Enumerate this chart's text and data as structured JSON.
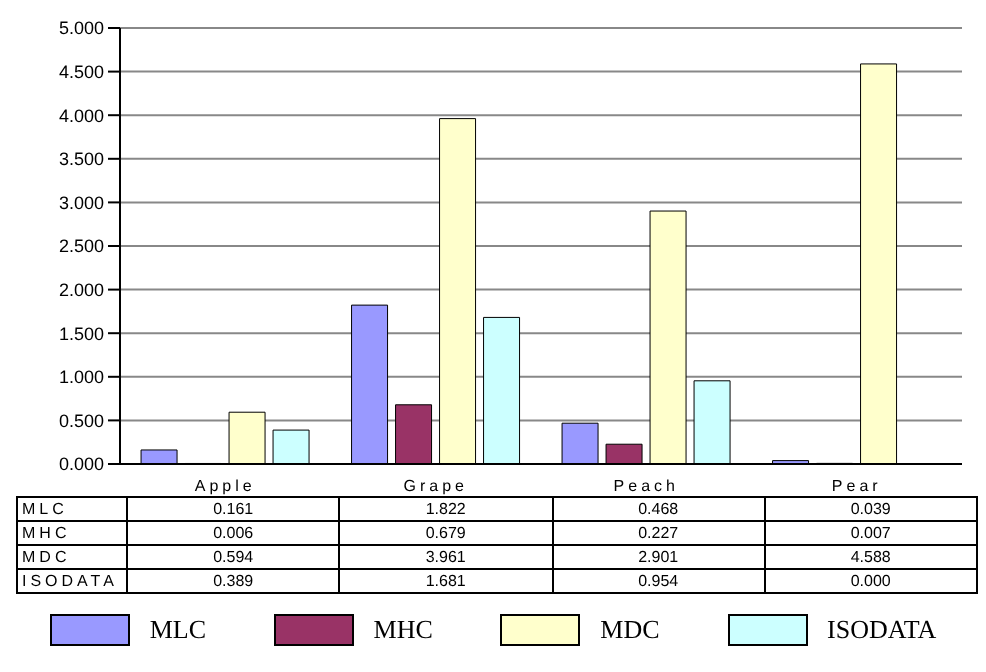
{
  "chart_data": {
    "type": "bar",
    "categories": [
      "Apple",
      "Grape",
      "Peach",
      "Pear"
    ],
    "series": [
      {
        "name": "MLC",
        "color": "#9999ff",
        "values": [
          0.161,
          1.822,
          0.468,
          0.039
        ],
        "value_labels": [
          "0.161",
          "1.822",
          "0.468",
          "0.039"
        ]
      },
      {
        "name": "MHC",
        "color": "#993366",
        "values": [
          0.006,
          0.679,
          0.227,
          0.007
        ],
        "value_labels": [
          "0.006",
          "0.679",
          "0.227",
          "0.007"
        ]
      },
      {
        "name": "MDC",
        "color": "#ffffcc",
        "values": [
          0.594,
          3.961,
          2.901,
          4.588
        ],
        "value_labels": [
          "0.594",
          "3.961",
          "2.901",
          "4.588"
        ]
      },
      {
        "name": "ISODATA",
        "color": "#ccffff",
        "values": [
          0.389,
          1.681,
          0.954,
          0
        ],
        "value_labels": [
          "0.389",
          "1.681",
          "0.954",
          "0.000"
        ]
      }
    ],
    "ylim": [
      0,
      5
    ],
    "yticks": [
      {
        "value": 0,
        "label": "0.000"
      },
      {
        "value": 0.5,
        "label": "0.500"
      },
      {
        "value": 1,
        "label": "1.000"
      },
      {
        "value": 1.5,
        "label": "1.500"
      },
      {
        "value": 2,
        "label": "2.000"
      },
      {
        "value": 2.5,
        "label": "2.500"
      },
      {
        "value": 3,
        "label": "3.000"
      },
      {
        "value": 3.5,
        "label": "3.500"
      },
      {
        "value": 4,
        "label": "4.000"
      },
      {
        "value": 4.5,
        "label": "4.500"
      },
      {
        "value": 5,
        "label": "5.000"
      }
    ],
    "grid": "y",
    "legend": "bottom"
  }
}
